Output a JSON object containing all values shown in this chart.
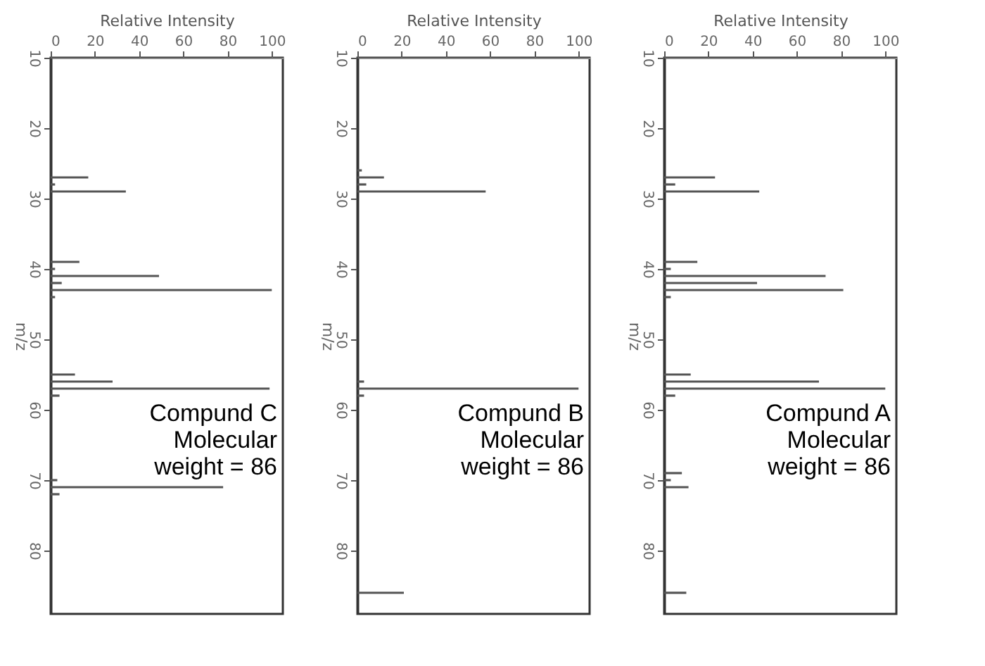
{
  "chart_data": [
    {
      "type": "bar",
      "orientation": "horizontal",
      "xlabel": "Relative Intensity",
      "ylabel": "m/z",
      "annotations": [
        "Compund C",
        "Molecular",
        "weight = 86"
      ],
      "xlim": [
        0,
        105
      ],
      "xticks": [
        0,
        20,
        40,
        60,
        80,
        100
      ],
      "ylim": [
        89,
        10
      ],
      "yticks": [
        10,
        20,
        30,
        40,
        50,
        60,
        70,
        80
      ],
      "grid": false,
      "series": [
        {
          "color": "#555555",
          "x": [
            27,
            28,
            29,
            39,
            40,
            41,
            42,
            43,
            44,
            55,
            56,
            57,
            58,
            70,
            71,
            72
          ],
          "values": [
            17,
            2,
            34,
            13,
            2,
            49,
            5,
            100,
            2,
            11,
            28,
            99,
            4,
            3,
            78,
            4
          ]
        }
      ]
    },
    {
      "type": "bar",
      "orientation": "horizontal",
      "xlabel": "Relative Intensity",
      "ylabel": "m/z",
      "annotations": [
        "Compund B",
        "Molecular",
        "weight = 86"
      ],
      "xlim": [
        0,
        105
      ],
      "xticks": [
        0,
        20,
        40,
        60,
        80,
        100
      ],
      "ylim": [
        89,
        10
      ],
      "yticks": [
        10,
        20,
        30,
        40,
        50,
        60,
        70,
        80
      ],
      "grid": false,
      "series": [
        {
          "color": "#555555",
          "x": [
            26,
            27,
            28,
            29,
            56,
            57,
            58,
            86
          ],
          "values": [
            2,
            12,
            4,
            58,
            3,
            100,
            3,
            21
          ]
        }
      ]
    },
    {
      "type": "bar",
      "orientation": "horizontal",
      "xlabel": "Relative Intensity",
      "ylabel": "m/z",
      "annotations": [
        "Compund A",
        "Molecular",
        "weight = 86"
      ],
      "xlim": [
        0,
        105
      ],
      "xticks": [
        0,
        20,
        40,
        60,
        80,
        100
      ],
      "ylim": [
        89,
        10
      ],
      "yticks": [
        10,
        20,
        30,
        40,
        50,
        60,
        70,
        80
      ],
      "grid": false,
      "series": [
        {
          "color": "#555555",
          "x": [
            27,
            28,
            29,
            39,
            40,
            41,
            42,
            43,
            44,
            55,
            56,
            57,
            58,
            69,
            70,
            71,
            86
          ],
          "values": [
            23,
            5,
            43,
            15,
            3,
            73,
            42,
            81,
            3,
            12,
            70,
            100,
            5,
            8,
            3,
            11,
            10
          ]
        }
      ]
    }
  ]
}
